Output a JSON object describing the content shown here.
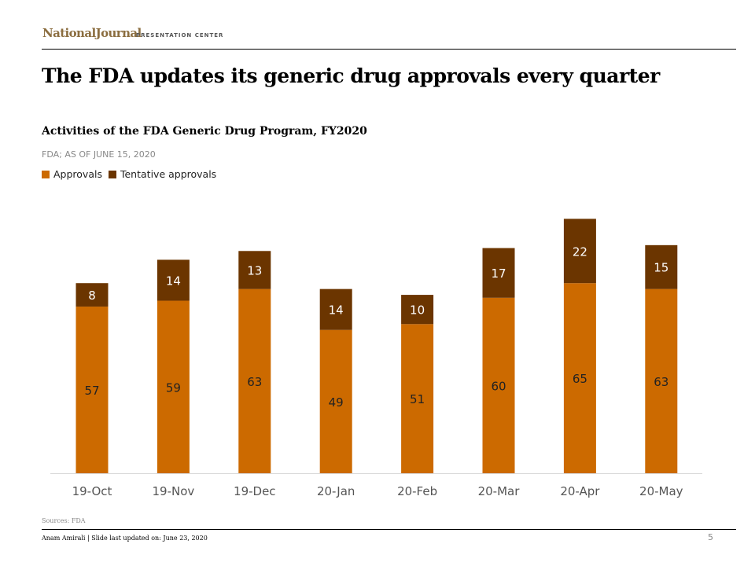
{
  "header": {
    "logo": "NationalJournal",
    "logo_sub": "PRESENTATION CENTER",
    "title": "The FDA updates its generic drug approvals every quarter"
  },
  "chart_data": {
    "type": "bar",
    "stacked": true,
    "title": "Activities of the FDA  Generic Drug  Program,  FY2020",
    "subtitle": "FDA; AS OF JUNE 15, 2020",
    "categories": [
      "19-Oct",
      "19-Nov",
      "19-Dec",
      "20-Jan",
      "20-Feb",
      "20-Mar",
      "20-Apr",
      "20-May"
    ],
    "series": [
      {
        "name": "Approvals",
        "color": "#CC6A00",
        "values": [
          57,
          59,
          63,
          49,
          51,
          60,
          65,
          63
        ]
      },
      {
        "name": "Tentative approvals",
        "color": "#6B3500",
        "values": [
          8,
          14,
          13,
          14,
          10,
          17,
          22,
          15
        ]
      }
    ],
    "legend": "top-left",
    "grid": false,
    "ylim": [
      0,
      90
    ]
  },
  "footer": {
    "sources": "Sources: FDA",
    "byline": "Anam Amirali | Slide last updated on: June 23, 2020",
    "page": "5"
  }
}
